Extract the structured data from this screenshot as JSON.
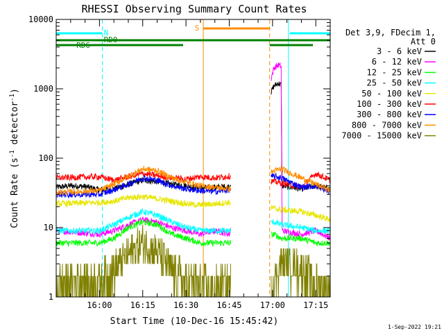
{
  "chart_data": {
    "type": "line",
    "title": "RHESSI Observing Summary Count Rates",
    "xlabel": "Start Time (10-Dec-16 15:45:42)",
    "ylabel": "Count Rate (s⁻¹ detector⁻¹)",
    "ylabel_parts": [
      "Count Rate (s",
      "-1",
      " detector",
      "-1",
      ")"
    ],
    "y_scale": "log",
    "ylim": [
      1,
      10000
    ],
    "xlim_minutes_after_1545": [
      0,
      95
    ],
    "y_ticks": [
      {
        "v": 1,
        "label": "1"
      },
      {
        "v": 10,
        "label": "10"
      },
      {
        "v": 100,
        "label": "100"
      },
      {
        "v": 1000,
        "label": "1000"
      },
      {
        "v": 10000,
        "label": "10000"
      }
    ],
    "x_ticks": [
      {
        "v": 15,
        "label": "16:00"
      },
      {
        "v": 30,
        "label": "16:15"
      },
      {
        "v": 45,
        "label": "16:30"
      },
      {
        "v": 60,
        "label": "16:45"
      },
      {
        "v": 75,
        "label": "17:00"
      },
      {
        "v": 90,
        "label": "17:15"
      }
    ],
    "legend_header": [
      "Det 3,9, FDecim 1,",
      "Att 0"
    ],
    "legend_position": "right",
    "series": [
      {
        "name": "3 - 6 keV",
        "color": "#000000",
        "values": [
          [
            0,
            38
          ],
          [
            5,
            40
          ],
          [
            10,
            39
          ],
          [
            15,
            35
          ],
          [
            20,
            36
          ],
          [
            25,
            42
          ],
          [
            30,
            48
          ],
          [
            35,
            46
          ],
          [
            40,
            42
          ],
          [
            45,
            40
          ],
          [
            50,
            37
          ],
          [
            55,
            38
          ],
          [
            60,
            39
          ],
          [
            75.5,
            1100
          ],
          [
            77,
            1200
          ],
          [
            78,
            1150
          ],
          [
            78.3,
            40
          ],
          [
            85,
            36
          ],
          [
            90,
            40
          ],
          [
            95,
            36
          ]
        ]
      },
      {
        "name": "6 - 12 keV",
        "color": "#ff00ff",
        "values": [
          [
            0,
            9
          ],
          [
            15,
            8
          ],
          [
            20,
            9
          ],
          [
            25,
            11
          ],
          [
            30,
            13
          ],
          [
            35,
            12
          ],
          [
            40,
            10
          ],
          [
            45,
            9
          ],
          [
            50,
            8
          ],
          [
            55,
            9
          ],
          [
            60,
            8
          ],
          [
            75.5,
            2000
          ],
          [
            77,
            2200
          ],
          [
            78,
            2100
          ],
          [
            78.3,
            9
          ],
          [
            85,
            8
          ],
          [
            90,
            9
          ],
          [
            95,
            7
          ]
        ]
      },
      {
        "name": "12 - 25 keV",
        "color": "#00ff00",
        "values": [
          [
            0,
            6
          ],
          [
            15,
            6
          ],
          [
            20,
            7
          ],
          [
            25,
            10
          ],
          [
            30,
            12
          ],
          [
            35,
            11
          ],
          [
            40,
            8
          ],
          [
            45,
            7
          ],
          [
            50,
            6
          ],
          [
            55,
            6
          ],
          [
            60,
            6
          ],
          [
            75.5,
            8
          ],
          [
            78,
            7
          ],
          [
            85,
            7
          ],
          [
            90,
            6
          ],
          [
            95,
            6
          ]
        ]
      },
      {
        "name": "25 - 50 keV",
        "color": "#00ffff",
        "values": [
          [
            0,
            9
          ],
          [
            15,
            9
          ],
          [
            20,
            11
          ],
          [
            25,
            14
          ],
          [
            30,
            17
          ],
          [
            35,
            15
          ],
          [
            40,
            12
          ],
          [
            45,
            10
          ],
          [
            50,
            9
          ],
          [
            55,
            9
          ],
          [
            60,
            9
          ],
          [
            75.5,
            12
          ],
          [
            78,
            11
          ],
          [
            85,
            10
          ],
          [
            90,
            9
          ],
          [
            95,
            9
          ]
        ]
      },
      {
        "name": "50 - 100 keV",
        "color": "#e6e600",
        "values": [
          [
            0,
            22
          ],
          [
            15,
            23
          ],
          [
            20,
            24
          ],
          [
            25,
            27
          ],
          [
            30,
            28
          ],
          [
            35,
            26
          ],
          [
            40,
            24
          ],
          [
            45,
            22
          ],
          [
            50,
            21
          ],
          [
            55,
            22
          ],
          [
            60,
            23
          ],
          [
            75.5,
            19
          ],
          [
            78,
            18
          ],
          [
            85,
            17
          ],
          [
            90,
            15
          ],
          [
            95,
            13
          ]
        ]
      },
      {
        "name": "100 - 300 keV",
        "color": "#ff0000",
        "values": [
          [
            0,
            52
          ],
          [
            15,
            54
          ],
          [
            20,
            48
          ],
          [
            25,
            54
          ],
          [
            30,
            60
          ],
          [
            35,
            56
          ],
          [
            40,
            52
          ],
          [
            45,
            50
          ],
          [
            50,
            54
          ],
          [
            55,
            52
          ],
          [
            60,
            55
          ],
          [
            75.5,
            46
          ],
          [
            78,
            44
          ],
          [
            85,
            38
          ],
          [
            90,
            60
          ],
          [
            95,
            48
          ]
        ]
      },
      {
        "name": "300 - 800 keV",
        "color": "#0000ff",
        "values": [
          [
            0,
            30
          ],
          [
            15,
            30
          ],
          [
            20,
            35
          ],
          [
            25,
            42
          ],
          [
            30,
            52
          ],
          [
            35,
            48
          ],
          [
            40,
            40
          ],
          [
            45,
            36
          ],
          [
            50,
            34
          ],
          [
            55,
            33
          ],
          [
            60,
            35
          ],
          [
            75.5,
            55
          ],
          [
            78,
            52
          ],
          [
            85,
            38
          ],
          [
            90,
            40
          ],
          [
            95,
            32
          ]
        ]
      },
      {
        "name": "800 - 7000 keV",
        "color": "#ff8c00",
        "values": [
          [
            0,
            32
          ],
          [
            15,
            34
          ],
          [
            20,
            42
          ],
          [
            25,
            55
          ],
          [
            30,
            70
          ],
          [
            35,
            66
          ],
          [
            40,
            52
          ],
          [
            45,
            45
          ],
          [
            50,
            40
          ],
          [
            55,
            38
          ],
          [
            60,
            36
          ],
          [
            75.5,
            65
          ],
          [
            78,
            70
          ],
          [
            85,
            52
          ],
          [
            90,
            42
          ],
          [
            95,
            34
          ]
        ]
      },
      {
        "name": "7000 - 15000 keV",
        "color": "#808000",
        "values": [
          [
            0,
            1.5
          ],
          [
            15,
            1.8
          ],
          [
            20,
            2.5
          ],
          [
            25,
            4
          ],
          [
            30,
            6
          ],
          [
            35,
            4.5
          ],
          [
            40,
            2.5
          ],
          [
            45,
            1.6
          ],
          [
            50,
            1.5
          ],
          [
            55,
            1.4
          ],
          [
            60,
            1.5
          ],
          [
            75.5,
            1.6
          ],
          [
            78,
            3
          ],
          [
            85,
            2.5
          ],
          [
            90,
            1.6
          ],
          [
            95,
            1.4
          ]
        ]
      }
    ],
    "state_bars": [
      {
        "label": "N",
        "color": "#00ffff",
        "spans": [
          [
            0,
            16
          ],
          [
            81,
            95
          ]
        ]
      },
      {
        "label": "RD0",
        "color": "#008000",
        "spans": [
          [
            0,
            95
          ]
        ]
      },
      {
        "label": "RD6",
        "color": "#008000",
        "spans": [
          [
            0,
            44
          ],
          [
            44,
            74
          ],
          [
            74,
            89
          ],
          [
            89,
            95
          ]
        ]
      },
      {
        "label": "S",
        "color": "#ff8c00",
        "spans": [
          [
            51,
            74
          ]
        ]
      }
    ],
    "vertical_markers": [
      {
        "x": 16,
        "color": "#00ffff",
        "style": "dashed"
      },
      {
        "x": 51,
        "color": "#ff8c00",
        "style": "solid"
      },
      {
        "x": 74,
        "color": "#ff8c00",
        "style": "dashed"
      },
      {
        "x": 80.5,
        "color": "#00ffff",
        "style": "solid"
      },
      {
        "x": 95,
        "color": "#00ffff",
        "style": "dashed"
      }
    ],
    "grid": false
  },
  "footer": {
    "timestamp": "1-Sep-2022 19:21"
  }
}
